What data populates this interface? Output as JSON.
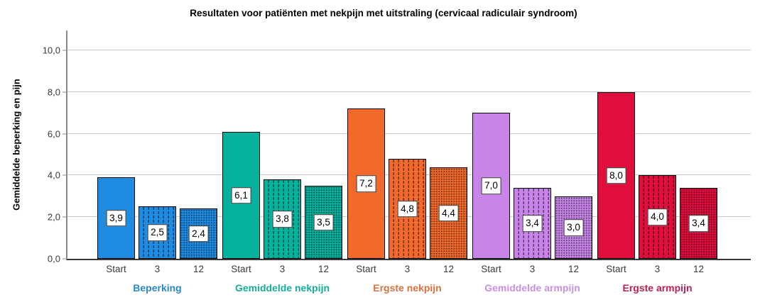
{
  "chart_data": {
    "type": "bar",
    "title": "Resultaten voor patiënten met nekpijn met uitstraling (cervicaal radiculair syndroom)",
    "ylabel": "Gemiddelde beperking en pijn",
    "xlabel": "",
    "ylim": [
      0,
      11
    ],
    "yticks": [
      0,
      2,
      4,
      6,
      8,
      10
    ],
    "ytick_labels": [
      "0,0",
      "2,0",
      "4,0",
      "6,0",
      "8,0",
      "10,0"
    ],
    "decimal_separator": ",",
    "grid": true,
    "categories": [
      "Start",
      "3",
      "12"
    ],
    "category_patterns": [
      "solid",
      "vertical-dashed",
      "dotted"
    ],
    "series": [
      {
        "name": "Beperking",
        "color": "#1E8CE3",
        "label_color": "#2B87CB",
        "values": [
          3.9,
          2.5,
          2.4
        ],
        "value_labels": [
          "3,9",
          "2,5",
          "2,4"
        ]
      },
      {
        "name": "Gemiddelde nekpijn",
        "color": "#03B19D",
        "label_color": "#16AD9B",
        "values": [
          6.1,
          3.8,
          3.5
        ],
        "value_labels": [
          "6,1",
          "3,8",
          "3,5"
        ]
      },
      {
        "name": "Ergste nekpijn",
        "color": "#F2692B",
        "label_color": "#D7713F",
        "values": [
          7.2,
          4.8,
          4.4
        ],
        "value_labels": [
          "7,2",
          "4,8",
          "4,4"
        ]
      },
      {
        "name": "Gemiddelde armpijn",
        "color": "#C884E9",
        "label_color": "#C88FE4",
        "values": [
          7.0,
          3.4,
          3.0
        ],
        "value_labels": [
          "7,0",
          "3,4",
          "3,0"
        ]
      },
      {
        "name": "Ergste armpijn",
        "color": "#E00E3C",
        "label_color": "#BE204E",
        "values": [
          8.0,
          4.0,
          3.4
        ],
        "value_labels": [
          "8,0",
          "4,0",
          "3,4"
        ]
      }
    ],
    "colors": {
      "grid_line": "#C9C9C9",
      "y_axis_line": "#8C8C8C",
      "x_axis_line": "#383838",
      "bar_border": "#000000",
      "tick_text": "#3A3A3A",
      "value_label_bg": "#FFFFFF",
      "value_label_border": "#333333"
    }
  }
}
